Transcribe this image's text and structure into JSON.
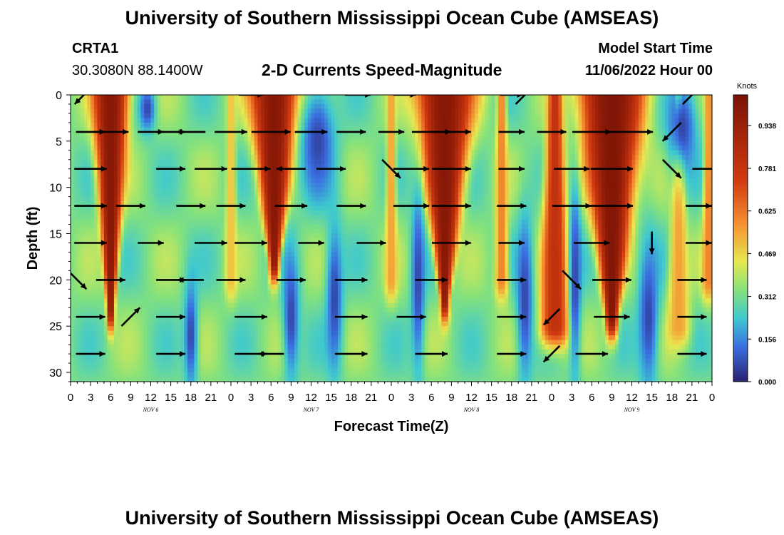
{
  "header": {
    "title": "University of Southern Mississippi Ocean Cube (AMSEAS)",
    "station": "CRTA1",
    "coords": "30.3080N  88.1400W",
    "subtitle": "2-D Currents Speed-Magnitude",
    "model_start_label": "Model Start Time",
    "model_start_value": "11/06/2022 Hour 00"
  },
  "footer": {
    "title": "University of Southern Mississippi Ocean Cube (AMSEAS)"
  },
  "colors": {
    "low": "#2b2070",
    "blue": "#3a6ee0",
    "green": "#86e27a",
    "orange": "#f59030",
    "high": "#7a1205",
    "arrow": "#000000"
  },
  "chart_data": {
    "type": "heatmap",
    "title": "2-D Currents Speed-Magnitude",
    "xlabel": "Forecast Time(Z)",
    "ylabel": "Depth (ft)",
    "x_range_hours": [
      0,
      96
    ],
    "y_range_ft": [
      0,
      31
    ],
    "y_ticks": [
      0,
      5,
      10,
      15,
      20,
      25,
      30
    ],
    "x_tick_step_hours": 3,
    "x_tick_labels": [
      "0",
      "3",
      "6",
      "9",
      "12",
      "15",
      "18",
      "21",
      "0",
      "3",
      "6",
      "9",
      "12",
      "15",
      "18",
      "21",
      "0",
      "3",
      "6",
      "9",
      "12",
      "15",
      "18",
      "21",
      "0",
      "3",
      "6",
      "9",
      "12",
      "15",
      "18",
      "21",
      "0"
    ],
    "days": [
      {
        "label": "NOV 6",
        "hour": 12
      },
      {
        "label": "NOV 7",
        "hour": 36
      },
      {
        "label": "NOV 8",
        "hour": 60
      },
      {
        "label": "NOV 9",
        "hour": 84
      }
    ],
    "colorbar": {
      "unit": "Knots",
      "min": 0.0,
      "max": 1.05,
      "ticks": [
        "0.000",
        "0.156",
        "0.312",
        "0.469",
        "0.625",
        "0.781",
        "0.938"
      ],
      "tick_values": [
        0.0,
        0.156,
        0.312,
        0.469,
        0.625,
        0.781,
        0.938
      ]
    },
    "strong_current_bands": [
      {
        "center_hour": 6.0,
        "top_half_width": 2.4,
        "bottom_half_width": 0.5,
        "max_depth": 23,
        "peak": 1.0
      },
      {
        "center_hour": 30.5,
        "top_half_width": 3.2,
        "bottom_half_width": 0.7,
        "max_depth": 18,
        "peak": 1.0
      },
      {
        "center_hour": 56.0,
        "top_half_width": 3.8,
        "bottom_half_width": 0.6,
        "max_depth": 22,
        "peak": 1.0
      },
      {
        "center_hour": 81.0,
        "top_half_width": 4.4,
        "bottom_half_width": 0.8,
        "max_depth": 24,
        "peak": 1.02
      },
      {
        "center_hour": 72.5,
        "top_half_width": 0.9,
        "bottom_half_width": 2.0,
        "max_depth": 25,
        "peak": 0.8
      },
      {
        "center_hour": 48.0,
        "top_half_width": 0.5,
        "bottom_half_width": 0.8,
        "max_depth": 20,
        "peak": 0.55
      },
      {
        "center_hour": 64.5,
        "top_half_width": 0.6,
        "bottom_half_width": 0.9,
        "max_depth": 20,
        "peak": 0.6
      },
      {
        "center_hour": 24.0,
        "top_half_width": 0.5,
        "bottom_half_width": 0.8,
        "max_depth": 20,
        "peak": 0.5
      },
      {
        "center_hour": 91.0,
        "top_half_width": 0.4,
        "bottom_half_width": 1.5,
        "max_depth": 25,
        "peak": 0.55
      },
      {
        "center_hour": 95.5,
        "top_half_width": 0.5,
        "bottom_half_width": 0.9,
        "max_depth": 20,
        "peak": 0.6
      }
    ],
    "weak_current_spots": [
      {
        "hour": 11.5,
        "depth": 1.5,
        "rx": 1.2,
        "ry": 2.5
      },
      {
        "hour": 18.0,
        "depth": 26.0,
        "rx": 1.0,
        "ry": 6.0
      },
      {
        "hour": 33.0,
        "depth": 24.0,
        "rx": 1.2,
        "ry": 7.0
      },
      {
        "hour": 37.0,
        "depth": 5.0,
        "rx": 2.5,
        "ry": 6.0
      },
      {
        "hour": 39.5,
        "depth": 22.0,
        "rx": 1.2,
        "ry": 8.0
      },
      {
        "hour": 52.0,
        "depth": 20.0,
        "rx": 1.0,
        "ry": 10.0
      },
      {
        "hour": 68.0,
        "depth": 22.0,
        "rx": 1.2,
        "ry": 9.0
      },
      {
        "hour": 75.5,
        "depth": 20.0,
        "rx": 0.9,
        "ry": 11.0
      },
      {
        "hour": 86.5,
        "depth": 24.0,
        "rx": 1.5,
        "ry": 8.0
      },
      {
        "hour": 91.5,
        "depth": 3.5,
        "rx": 2.2,
        "ry": 5.0
      }
    ],
    "vector_depths_ft": [
      0,
      4,
      8,
      12,
      16,
      20,
      24,
      28
    ],
    "vector_hours": [
      0,
      3,
      6,
      9,
      12,
      15,
      18,
      21,
      24,
      27,
      30,
      33,
      36,
      39,
      42,
      45,
      48,
      51,
      54,
      57,
      60,
      63,
      66,
      69,
      72,
      75,
      78,
      81,
      84,
      87,
      90,
      93,
      96
    ],
    "vectors": [
      {
        "depth": 0,
        "hour": 2,
        "dir": "SW",
        "speed": 0.4
      },
      {
        "depth": 0,
        "hour": 27,
        "dir": "E",
        "speed": 0.35
      },
      {
        "depth": 0,
        "hour": 43,
        "dir": "E",
        "speed": 0.4
      },
      {
        "depth": 0,
        "hour": 50,
        "dir": "E",
        "speed": 0.3
      },
      {
        "depth": 0,
        "hour": 66,
        "dir": "E",
        "speed": 0.3
      },
      {
        "depth": 0,
        "hour": 68,
        "dir": "NE",
        "speed": 0.4
      },
      {
        "depth": 0,
        "hour": 93,
        "dir": "NE",
        "speed": 0.4
      },
      {
        "depth": 0,
        "hour": 96,
        "dir": "SE",
        "speed": 0.4
      },
      {
        "depth": 4,
        "hour": 3,
        "dir": "E",
        "speed": 0.5
      },
      {
        "depth": 4,
        "hour": 6,
        "dir": "E",
        "speed": 0.7
      },
      {
        "depth": 4,
        "hour": 12,
        "dir": "E",
        "speed": 0.4
      },
      {
        "depth": 4,
        "hour": 15,
        "dir": "E",
        "speed": 0.5
      },
      {
        "depth": 4,
        "hour": 18,
        "dir": "W",
        "speed": 0.5
      },
      {
        "depth": 4,
        "hour": 24,
        "dir": "E",
        "speed": 0.6
      },
      {
        "depth": 4,
        "hour": 30,
        "dir": "E",
        "speed": 0.8
      },
      {
        "depth": 4,
        "hour": 36,
        "dir": "E",
        "speed": 0.6
      },
      {
        "depth": 4,
        "hour": 42,
        "dir": "E",
        "speed": 0.5
      },
      {
        "depth": 4,
        "hour": 48,
        "dir": "E",
        "speed": 0.4
      },
      {
        "depth": 4,
        "hour": 54,
        "dir": "E",
        "speed": 0.8
      },
      {
        "depth": 4,
        "hour": 57,
        "dir": "E",
        "speed": 0.8
      },
      {
        "depth": 4,
        "hour": 66,
        "dir": "E",
        "speed": 0.4
      },
      {
        "depth": 4,
        "hour": 72,
        "dir": "E",
        "speed": 0.5
      },
      {
        "depth": 4,
        "hour": 78,
        "dir": "E",
        "speed": 0.8
      },
      {
        "depth": 4,
        "hour": 84,
        "dir": "E",
        "speed": 0.9
      },
      {
        "depth": 4,
        "hour": 90,
        "dir": "SW",
        "speed": 0.4
      },
      {
        "depth": 8,
        "hour": 3,
        "dir": "E",
        "speed": 0.6
      },
      {
        "depth": 8,
        "hour": 15,
        "dir": "E",
        "speed": 0.5
      },
      {
        "depth": 8,
        "hour": 21,
        "dir": "E",
        "speed": 0.6
      },
      {
        "depth": 8,
        "hour": 27,
        "dir": "E",
        "speed": 0.8
      },
      {
        "depth": 8,
        "hour": 33,
        "dir": "W",
        "speed": 0.5
      },
      {
        "depth": 8,
        "hour": 39,
        "dir": "E",
        "speed": 0.5
      },
      {
        "depth": 8,
        "hour": 48,
        "dir": "SE",
        "speed": 0.4
      },
      {
        "depth": 8,
        "hour": 51,
        "dir": "E",
        "speed": 0.7
      },
      {
        "depth": 8,
        "hour": 57,
        "dir": "E",
        "speed": 0.8
      },
      {
        "depth": 8,
        "hour": 66,
        "dir": "E",
        "speed": 0.4
      },
      {
        "depth": 8,
        "hour": 75,
        "dir": "E",
        "speed": 0.7
      },
      {
        "depth": 8,
        "hour": 81,
        "dir": "E",
        "speed": 0.9
      },
      {
        "depth": 8,
        "hour": 90,
        "dir": "SE",
        "speed": 0.4
      },
      {
        "depth": 8,
        "hour": 95,
        "dir": "E",
        "speed": 0.4
      },
      {
        "depth": 12,
        "hour": 3,
        "dir": "E",
        "speed": 0.6
      },
      {
        "depth": 12,
        "hour": 9,
        "dir": "E",
        "speed": 0.5
      },
      {
        "depth": 12,
        "hour": 18,
        "dir": "E",
        "speed": 0.5
      },
      {
        "depth": 12,
        "hour": 24,
        "dir": "E",
        "speed": 0.5
      },
      {
        "depth": 12,
        "hour": 33,
        "dir": "E",
        "speed": 0.6
      },
      {
        "depth": 12,
        "hour": 42,
        "dir": "E",
        "speed": 0.5
      },
      {
        "depth": 12,
        "hour": 51,
        "dir": "E",
        "speed": 0.7
      },
      {
        "depth": 12,
        "hour": 57,
        "dir": "E",
        "speed": 0.8
      },
      {
        "depth": 12,
        "hour": 66,
        "dir": "E",
        "speed": 0.5
      },
      {
        "depth": 12,
        "hour": 75,
        "dir": "E",
        "speed": 0.8
      },
      {
        "depth": 12,
        "hour": 81,
        "dir": "E",
        "speed": 0.9
      },
      {
        "depth": 12,
        "hour": 94,
        "dir": "E",
        "speed": 0.4
      },
      {
        "depth": 16,
        "hour": 3,
        "dir": "E",
        "speed": 0.6
      },
      {
        "depth": 16,
        "hour": 12,
        "dir": "E",
        "speed": 0.4
      },
      {
        "depth": 16,
        "hour": 21,
        "dir": "E",
        "speed": 0.6
      },
      {
        "depth": 16,
        "hour": 27,
        "dir": "E",
        "speed": 0.6
      },
      {
        "depth": 16,
        "hour": 36,
        "dir": "E",
        "speed": 0.4
      },
      {
        "depth": 16,
        "hour": 45,
        "dir": "E",
        "speed": 0.5
      },
      {
        "depth": 16,
        "hour": 57,
        "dir": "E",
        "speed": 0.8
      },
      {
        "depth": 16,
        "hour": 66,
        "dir": "E",
        "speed": 0.4
      },
      {
        "depth": 16,
        "hour": 78,
        "dir": "E",
        "speed": 0.7
      },
      {
        "depth": 16,
        "hour": 87,
        "dir": "S",
        "speed": 0.3
      },
      {
        "depth": 16,
        "hour": 94,
        "dir": "E",
        "speed": 0.4
      },
      {
        "depth": 20,
        "hour": 1,
        "dir": "SE",
        "speed": 0.4
      },
      {
        "depth": 20,
        "hour": 6,
        "dir": "E",
        "speed": 0.5
      },
      {
        "depth": 20,
        "hour": 15,
        "dir": "E",
        "speed": 0.5
      },
      {
        "depth": 20,
        "hour": 18,
        "dir": "W",
        "speed": 0.4
      },
      {
        "depth": 20,
        "hour": 24,
        "dir": "E",
        "speed": 0.5
      },
      {
        "depth": 20,
        "hour": 33,
        "dir": "E",
        "speed": 0.5
      },
      {
        "depth": 20,
        "hour": 42,
        "dir": "E",
        "speed": 0.6
      },
      {
        "depth": 20,
        "hour": 54,
        "dir": "E",
        "speed": 0.6
      },
      {
        "depth": 20,
        "hour": 66,
        "dir": "E",
        "speed": 0.5
      },
      {
        "depth": 20,
        "hour": 75,
        "dir": "SE",
        "speed": 0.4
      },
      {
        "depth": 20,
        "hour": 81,
        "dir": "E",
        "speed": 0.8
      },
      {
        "depth": 20,
        "hour": 93,
        "dir": "E",
        "speed": 0.5
      },
      {
        "depth": 24,
        "hour": 3,
        "dir": "E",
        "speed": 0.5
      },
      {
        "depth": 24,
        "hour": 9,
        "dir": "NE",
        "speed": 0.4
      },
      {
        "depth": 24,
        "hour": 15,
        "dir": "E",
        "speed": 0.5
      },
      {
        "depth": 24,
        "hour": 27,
        "dir": "E",
        "speed": 0.6
      },
      {
        "depth": 24,
        "hour": 42,
        "dir": "E",
        "speed": 0.6
      },
      {
        "depth": 24,
        "hour": 51,
        "dir": "E",
        "speed": 0.5
      },
      {
        "depth": 24,
        "hour": 66,
        "dir": "E",
        "speed": 0.5
      },
      {
        "depth": 24,
        "hour": 72,
        "dir": "SW",
        "speed": 0.3
      },
      {
        "depth": 24,
        "hour": 81,
        "dir": "E",
        "speed": 0.7
      },
      {
        "depth": 24,
        "hour": 93,
        "dir": "E",
        "speed": 0.5
      },
      {
        "depth": 28,
        "hour": 3,
        "dir": "E",
        "speed": 0.5
      },
      {
        "depth": 28,
        "hour": 15,
        "dir": "E",
        "speed": 0.5
      },
      {
        "depth": 28,
        "hour": 27,
        "dir": "E",
        "speed": 0.6
      },
      {
        "depth": 28,
        "hour": 30,
        "dir": "W",
        "speed": 0.4
      },
      {
        "depth": 28,
        "hour": 42,
        "dir": "E",
        "speed": 0.6
      },
      {
        "depth": 28,
        "hour": 54,
        "dir": "E",
        "speed": 0.6
      },
      {
        "depth": 28,
        "hour": 66,
        "dir": "E",
        "speed": 0.5
      },
      {
        "depth": 28,
        "hour": 72,
        "dir": "SW",
        "speed": 0.3
      },
      {
        "depth": 28,
        "hour": 78,
        "dir": "E",
        "speed": 0.6
      },
      {
        "depth": 28,
        "hour": 93,
        "dir": "E",
        "speed": 0.5
      }
    ]
  }
}
